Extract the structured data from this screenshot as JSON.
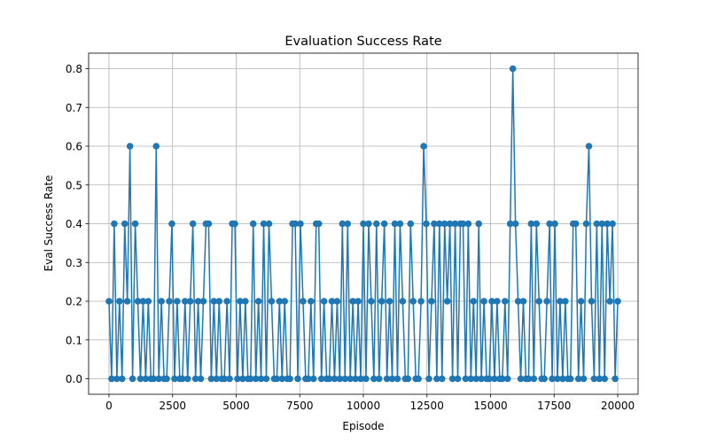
{
  "chart_data": {
    "type": "line",
    "title": "Evaluation Success Rate",
    "xlabel": "Episode",
    "ylabel": "Eval Success Rate",
    "xlim": [
      -800,
      20800
    ],
    "ylim": [
      -0.04,
      0.84
    ],
    "xticks": [
      0,
      2500,
      5000,
      7500,
      10000,
      12500,
      15000,
      17500,
      20000
    ],
    "xtick_labels": [
      "0",
      "2500",
      "5000",
      "7500",
      "10000",
      "12500",
      "15000",
      "17500",
      "20000"
    ],
    "yticks": [
      0.0,
      0.1,
      0.2,
      0.3,
      0.4,
      0.5,
      0.6,
      0.7,
      0.8
    ],
    "ytick_labels": [
      "0.0",
      "0.1",
      "0.2",
      "0.3",
      "0.4",
      "0.5",
      "0.6",
      "0.7",
      "0.8"
    ],
    "grid": true,
    "marker": "circle",
    "color": "#1f77b4",
    "x_step": 100,
    "x_start": 0,
    "x_end": 20000,
    "series": [
      {
        "values": [
          0.2,
          0.0,
          0.4,
          0.0,
          0.2,
          0.0,
          0.4,
          0.2,
          0.6,
          0.0,
          0.4,
          0.2,
          0.0,
          0.2,
          0.0,
          0.2,
          0.0,
          0.0,
          0.6,
          0.0,
          0.2,
          0.0,
          0.0,
          0.2,
          0.4,
          0.0,
          0.2,
          0.0,
          0.0,
          0.2,
          0.0,
          0.2,
          0.4,
          0.0,
          0.2,
          0.0,
          0.2,
          0.4,
          0.4,
          0.0,
          0.2,
          0.0,
          0.2,
          0.0,
          0.0,
          0.2,
          0.0,
          0.4,
          0.4,
          0.0,
          0.2,
          0.0,
          0.2,
          0.0,
          0.0,
          0.4,
          0.0,
          0.2,
          0.0,
          0.4,
          0.0,
          0.4,
          0.2,
          0.0,
          0.0,
          0.2,
          0.0,
          0.2,
          0.0,
          0.0,
          0.4,
          0.4,
          0.0,
          0.4,
          0.2,
          0.0,
          0.0,
          0.2,
          0.0,
          0.4,
          0.4,
          0.0,
          0.2,
          0.0,
          0.0,
          0.2,
          0.0,
          0.2,
          0.0,
          0.4,
          0.0,
          0.4,
          0.0,
          0.2,
          0.0,
          0.2,
          0.0,
          0.4,
          0.0,
          0.4,
          0.2,
          0.0,
          0.4,
          0.0,
          0.2,
          0.4,
          0.0,
          0.2,
          0.0,
          0.4,
          0.0,
          0.4,
          0.2,
          0.0,
          0.0,
          0.4,
          0.2,
          0.0,
          0.0,
          0.2,
          0.6,
          0.4,
          0.0,
          0.2,
          0.4,
          0.0,
          0.4,
          0.0,
          0.4,
          0.2,
          0.4,
          0.0,
          0.4,
          0.0,
          0.4,
          0.4,
          0.0,
          0.4,
          0.0,
          0.2,
          0.0,
          0.4,
          0.0,
          0.2,
          0.0,
          0.0,
          0.2,
          0.0,
          0.2,
          0.0,
          0.0,
          0.2,
          0.0,
          0.4,
          0.8,
          0.4,
          0.2,
          0.0,
          0.2,
          0.0,
          0.0,
          0.4,
          0.0,
          0.4,
          0.2,
          0.0,
          0.0,
          0.2,
          0.4,
          0.0,
          0.4,
          0.0,
          0.2,
          0.0,
          0.2,
          0.0,
          0.0,
          0.4,
          0.4,
          0.0,
          0.2,
          0.0,
          0.4,
          0.6,
          0.2,
          0.0,
          0.4,
          0.0,
          0.4,
          0.0,
          0.4,
          0.2,
          0.4,
          0.0,
          0.2
        ]
      }
    ]
  }
}
